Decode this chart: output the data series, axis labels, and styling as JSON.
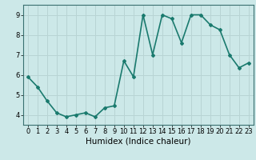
{
  "x": [
    0,
    1,
    2,
    3,
    4,
    5,
    6,
    7,
    8,
    9,
    10,
    11,
    12,
    13,
    14,
    15,
    16,
    17,
    18,
    19,
    20,
    21,
    22,
    23
  ],
  "y": [
    5.9,
    5.4,
    4.7,
    4.1,
    3.9,
    4.0,
    4.1,
    3.9,
    4.35,
    4.45,
    6.7,
    5.9,
    9.0,
    7.0,
    9.0,
    8.8,
    7.6,
    9.0,
    9.0,
    8.5,
    8.25,
    7.0,
    6.35,
    6.6
  ],
  "line_color": "#1a7a6e",
  "marker": "D",
  "marker_size": 2.0,
  "bg_color": "#cce8e8",
  "grid_color": "#b8d4d4",
  "xlabel": "Humidex (Indice chaleur)",
  "xlim": [
    -0.5,
    23.5
  ],
  "ylim": [
    3.5,
    9.5
  ],
  "yticks": [
    4,
    5,
    6,
    7,
    8,
    9
  ],
  "xticks": [
    0,
    1,
    2,
    3,
    4,
    5,
    6,
    7,
    8,
    9,
    10,
    11,
    12,
    13,
    14,
    15,
    16,
    17,
    18,
    19,
    20,
    21,
    22,
    23
  ],
  "tick_fontsize": 6,
  "xlabel_fontsize": 7.5,
  "line_width": 1.2
}
